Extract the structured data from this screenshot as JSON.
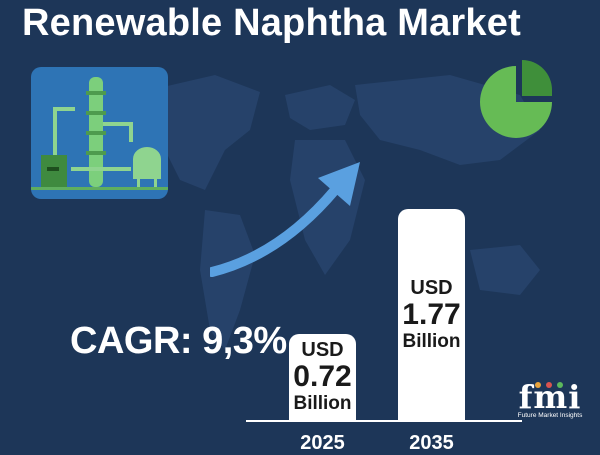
{
  "title": "Renewable Naphtha Market",
  "cagr_text": "CAGR: 9,3%",
  "colors": {
    "background": "#1d3658",
    "plant_card": "#2e74b5",
    "green": "#5cb85c",
    "arrow": "#5aa0e0",
    "bar": "#ffffff"
  },
  "icons": [
    "refinery-icon",
    "pie-chart-icon",
    "growth-arrow-icon"
  ],
  "chart_data": {
    "type": "bar",
    "title": "",
    "xlabel": "",
    "ylabel": "",
    "categories": [
      "2025",
      "2035"
    ],
    "values": [
      0.72,
      1.77
    ],
    "labels": [
      {
        "prefix": "USD",
        "value": "0.72",
        "unit": "Billion"
      },
      {
        "prefix": "USD",
        "value": "1.77",
        "unit": "Billion"
      }
    ],
    "unit": "USD Billion",
    "ylim": [
      0,
      2.2
    ],
    "grid": false,
    "legend": "none"
  },
  "logo": {
    "mark": "fmi",
    "subtitle": "Future Market Insights"
  }
}
